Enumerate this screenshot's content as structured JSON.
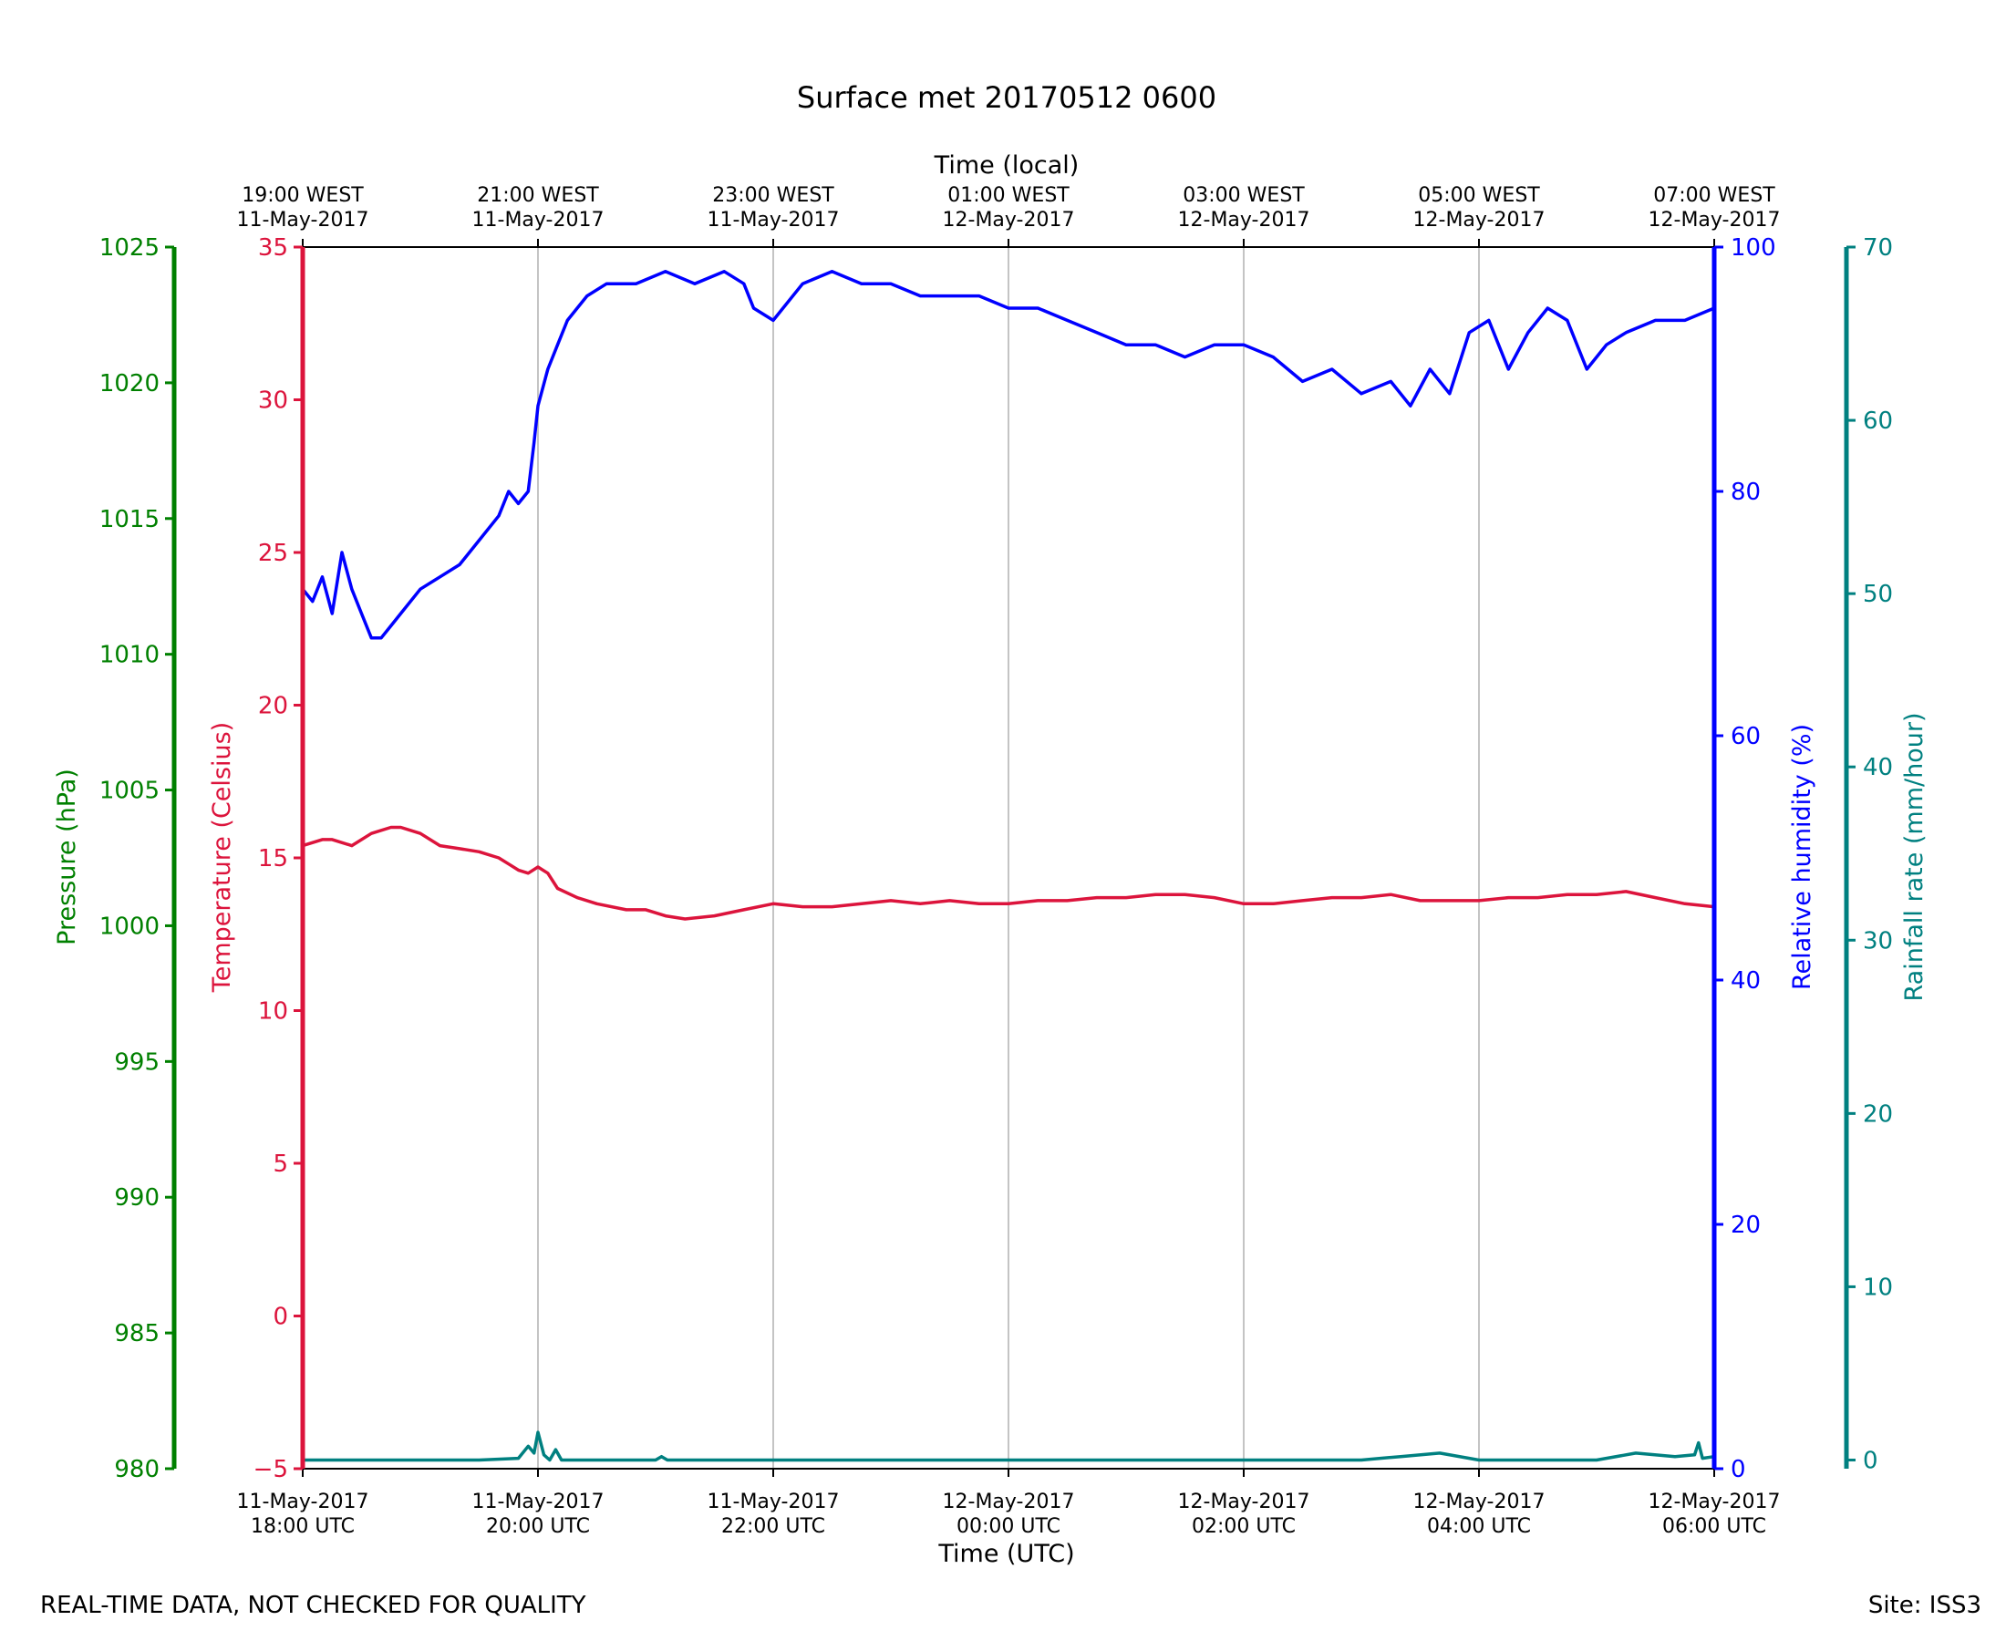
{
  "colors": {
    "pressure": "#008000",
    "temperature": "#dc143c",
    "humidity": "#0000ff",
    "rainfall": "#008080",
    "grid": "#b0b0b0",
    "axis": "#000000"
  },
  "footer": {
    "left": "REAL-TIME DATA, NOT CHECKED FOR QUALITY",
    "right": "Site: ISS3"
  },
  "chart_data": {
    "type": "line",
    "title": "Surface met 20170512 0600",
    "xlabel": "Time (UTC)",
    "xlabel_top": "Time (local)",
    "x_ticks_bottom": [
      [
        "11-May-2017",
        "18:00 UTC"
      ],
      [
        "11-May-2017",
        "20:00 UTC"
      ],
      [
        "11-May-2017",
        "22:00 UTC"
      ],
      [
        "12-May-2017",
        "00:00 UTC"
      ],
      [
        "12-May-2017",
        "02:00 UTC"
      ],
      [
        "12-May-2017",
        "04:00 UTC"
      ],
      [
        "12-May-2017",
        "06:00 UTC"
      ]
    ],
    "x_ticks_top": [
      [
        "19:00 WEST",
        "11-May-2017"
      ],
      [
        "21:00 WEST",
        "11-May-2017"
      ],
      [
        "23:00 WEST",
        "11-May-2017"
      ],
      [
        "01:00 WEST",
        "12-May-2017"
      ],
      [
        "03:00 WEST",
        "12-May-2017"
      ],
      [
        "05:00 WEST",
        "12-May-2017"
      ],
      [
        "07:00 WEST",
        "12-May-2017"
      ]
    ],
    "xlim": [
      "2017-05-11T18:00Z",
      "2017-05-12T06:00Z"
    ],
    "grid": "vertical",
    "axes": {
      "pressure": {
        "label": "Pressure (hPa)",
        "ylim": [
          980,
          1025
        ],
        "ticks": [
          980,
          985,
          990,
          995,
          1000,
          1005,
          1010,
          1015,
          1020,
          1025
        ]
      },
      "temperature": {
        "label": "Temperature (Celsius)",
        "ylim": [
          -5,
          35
        ],
        "ticks": [
          -5,
          0,
          5,
          10,
          15,
          20,
          25,
          30,
          35
        ]
      },
      "humidity": {
        "label": "Relative humidity (%)",
        "ylim": [
          0,
          100
        ],
        "ticks": [
          0,
          20,
          40,
          60,
          80,
          100
        ]
      },
      "rainfall": {
        "label": "Rainfall rate (mm/hour)",
        "ylim": [
          -0.5,
          70
        ],
        "ticks": [
          0,
          10,
          20,
          30,
          40,
          50,
          60,
          70
        ]
      }
    },
    "series": [
      {
        "axis": "temperature",
        "x": [
          "2017-05-11T18:00Z",
          "2017-05-11T18:10Z",
          "2017-05-11T18:15Z",
          "2017-05-11T18:25Z",
          "2017-05-11T18:35Z",
          "2017-05-11T18:45Z",
          "2017-05-11T18:50Z",
          "2017-05-11T19:00Z",
          "2017-05-11T19:10Z",
          "2017-05-11T19:20Z",
          "2017-05-11T19:30Z",
          "2017-05-11T19:40Z",
          "2017-05-11T19:45Z",
          "2017-05-11T19:50Z",
          "2017-05-11T19:55Z",
          "2017-05-11T20:00Z",
          "2017-05-11T20:05Z",
          "2017-05-11T20:10Z",
          "2017-05-11T20:20Z",
          "2017-05-11T20:30Z",
          "2017-05-11T20:45Z",
          "2017-05-11T20:55Z",
          "2017-05-11T21:05Z",
          "2017-05-11T21:15Z",
          "2017-05-11T21:30Z",
          "2017-05-11T21:45Z",
          "2017-05-11T22:00Z",
          "2017-05-11T22:15Z",
          "2017-05-11T22:30Z",
          "2017-05-11T22:45Z",
          "2017-05-11T23:00Z",
          "2017-05-11T23:15Z",
          "2017-05-11T23:30Z",
          "2017-05-11T23:45Z",
          "2017-05-12T00:00Z",
          "2017-05-12T00:15Z",
          "2017-05-12T00:30Z",
          "2017-05-12T00:45Z",
          "2017-05-12T01:00Z",
          "2017-05-12T01:15Z",
          "2017-05-12T01:30Z",
          "2017-05-12T01:45Z",
          "2017-05-12T02:00Z",
          "2017-05-12T02:15Z",
          "2017-05-12T02:30Z",
          "2017-05-12T02:45Z",
          "2017-05-12T03:00Z",
          "2017-05-12T03:15Z",
          "2017-05-12T03:30Z",
          "2017-05-12T03:45Z",
          "2017-05-12T04:00Z",
          "2017-05-12T04:15Z",
          "2017-05-12T04:30Z",
          "2017-05-12T04:45Z",
          "2017-05-12T05:00Z",
          "2017-05-12T05:15Z",
          "2017-05-12T05:30Z",
          "2017-05-12T05:45Z",
          "2017-05-12T06:00Z"
        ],
        "values": [
          15.4,
          15.6,
          15.6,
          15.4,
          15.8,
          16.0,
          16.0,
          15.8,
          15.4,
          15.3,
          15.2,
          15.0,
          14.8,
          14.6,
          14.5,
          14.7,
          14.5,
          14.0,
          13.7,
          13.5,
          13.3,
          13.3,
          13.1,
          13.0,
          13.1,
          13.3,
          13.5,
          13.4,
          13.4,
          13.5,
          13.6,
          13.5,
          13.6,
          13.5,
          13.5,
          13.6,
          13.6,
          13.7,
          13.7,
          13.8,
          13.8,
          13.7,
          13.5,
          13.5,
          13.6,
          13.7,
          13.7,
          13.8,
          13.6,
          13.6,
          13.6,
          13.7,
          13.7,
          13.8,
          13.8,
          13.9,
          13.7,
          13.5,
          13.4
        ]
      },
      {
        "axis": "humidity",
        "x": [
          "2017-05-11T18:00Z",
          "2017-05-11T18:05Z",
          "2017-05-11T18:10Z",
          "2017-05-11T18:15Z",
          "2017-05-11T18:20Z",
          "2017-05-11T18:25Z",
          "2017-05-11T18:30Z",
          "2017-05-11T18:35Z",
          "2017-05-11T18:40Z",
          "2017-05-11T18:45Z",
          "2017-05-11T18:50Z",
          "2017-05-11T19:00Z",
          "2017-05-11T19:10Z",
          "2017-05-11T19:20Z",
          "2017-05-11T19:30Z",
          "2017-05-11T19:40Z",
          "2017-05-11T19:45Z",
          "2017-05-11T19:50Z",
          "2017-05-11T19:55Z",
          "2017-05-11T19:58Z",
          "2017-05-11T20:00Z",
          "2017-05-11T20:05Z",
          "2017-05-11T20:10Z",
          "2017-05-11T20:15Z",
          "2017-05-11T20:25Z",
          "2017-05-11T20:35Z",
          "2017-05-11T20:50Z",
          "2017-05-11T21:05Z",
          "2017-05-11T21:20Z",
          "2017-05-11T21:35Z",
          "2017-05-11T21:45Z",
          "2017-05-11T21:50Z",
          "2017-05-11T22:00Z",
          "2017-05-11T22:15Z",
          "2017-05-11T22:30Z",
          "2017-05-11T22:45Z",
          "2017-05-11T23:00Z",
          "2017-05-11T23:15Z",
          "2017-05-11T23:30Z",
          "2017-05-11T23:45Z",
          "2017-05-12T00:00Z",
          "2017-05-12T00:15Z",
          "2017-05-12T00:30Z",
          "2017-05-12T00:45Z",
          "2017-05-12T01:00Z",
          "2017-05-12T01:15Z",
          "2017-05-12T01:30Z",
          "2017-05-12T01:45Z",
          "2017-05-12T02:00Z",
          "2017-05-12T02:15Z",
          "2017-05-12T02:30Z",
          "2017-05-12T02:45Z",
          "2017-05-12T03:00Z",
          "2017-05-12T03:15Z",
          "2017-05-12T03:25Z",
          "2017-05-12T03:35Z",
          "2017-05-12T03:45Z",
          "2017-05-12T03:55Z",
          "2017-05-12T04:05Z",
          "2017-05-12T04:15Z",
          "2017-05-12T04:25Z",
          "2017-05-12T04:35Z",
          "2017-05-12T04:45Z",
          "2017-05-12T04:55Z",
          "2017-05-12T05:05Z",
          "2017-05-12T05:15Z",
          "2017-05-12T05:30Z",
          "2017-05-12T05:45Z",
          "2017-05-12T06:00Z"
        ],
        "values": [
          72,
          71,
          73,
          70,
          75,
          72,
          70,
          68,
          68,
          69,
          70,
          72,
          73,
          74,
          76,
          78,
          80,
          79,
          80,
          84,
          87,
          90,
          92,
          94,
          96,
          97,
          97,
          98,
          97,
          98,
          97,
          95,
          94,
          97,
          98,
          97,
          97,
          96,
          96,
          96,
          95,
          95,
          94,
          93,
          92,
          92,
          91,
          92,
          92,
          91,
          89,
          90,
          88,
          89,
          87,
          90,
          88,
          93,
          94,
          90,
          93,
          95,
          94,
          90,
          92,
          93,
          94,
          94,
          95
        ]
      },
      {
        "axis": "rainfall",
        "x": [
          "2017-05-11T18:00Z",
          "2017-05-11T19:30Z",
          "2017-05-11T19:50Z",
          "2017-05-11T19:55Z",
          "2017-05-11T19:58Z",
          "2017-05-11T20:00Z",
          "2017-05-11T20:03Z",
          "2017-05-11T20:06Z",
          "2017-05-11T20:09Z",
          "2017-05-11T20:12Z",
          "2017-05-11T20:15Z",
          "2017-05-11T21:00Z",
          "2017-05-11T21:03Z",
          "2017-05-11T21:06Z",
          "2017-05-12T03:00Z",
          "2017-05-12T03:20Z",
          "2017-05-12T03:40Z",
          "2017-05-12T04:00Z",
          "2017-05-12T04:40Z",
          "2017-05-12T05:00Z",
          "2017-05-12T05:20Z",
          "2017-05-12T05:40Z",
          "2017-05-12T05:50Z",
          "2017-05-12T05:52Z",
          "2017-05-12T05:54Z",
          "2017-05-12T06:00Z"
        ],
        "values": [
          0,
          0,
          0.1,
          0.8,
          0.4,
          1.6,
          0.3,
          0,
          0.6,
          0,
          0,
          0,
          0.2,
          0,
          0,
          0.2,
          0.4,
          0,
          0,
          0,
          0.4,
          0.2,
          0.3,
          1.0,
          0.1,
          0.2
        ]
      }
    ]
  }
}
